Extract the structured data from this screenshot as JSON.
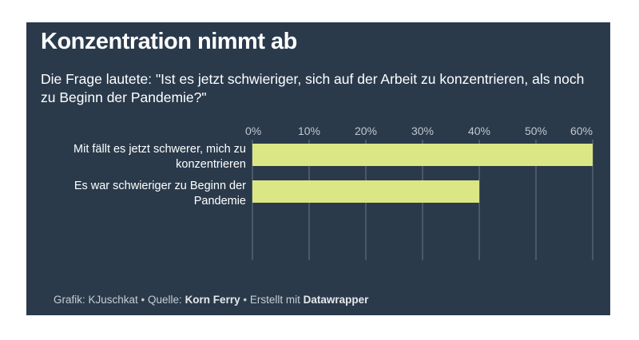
{
  "title": "Konzentration nimmt ab",
  "subtitle": "Die Frage lautete: \"Ist es jetzt schwieriger, sich auf der Arbeit zu konzentrieren, als noch zu Beginn der Pandemie?\"",
  "footer": {
    "grafik": "Grafik: KJuschkat",
    "sep": " • ",
    "quelle_label": "Quelle: ",
    "quelle": "Korn Ferry",
    "erstellt_label": "Erstellt mit ",
    "tool": "Datawrapper"
  },
  "colors": {
    "background": "#2a3a4b",
    "bar": "#dbe685",
    "grid": "#6b7784"
  },
  "chart_data": {
    "type": "bar",
    "orientation": "horizontal",
    "categories": [
      [
        "Mit fällt es jetzt schwerer, mich zu",
        "konzentrieren"
      ],
      [
        "Es war schwieriger zu Beginn der",
        "Pandemie"
      ]
    ],
    "values": [
      60,
      40
    ],
    "xlim": [
      0,
      60
    ],
    "ticks": [
      "0%",
      "10%",
      "20%",
      "30%",
      "40%",
      "50%",
      "60%"
    ],
    "tick_values": [
      0,
      10,
      20,
      30,
      40,
      50,
      60
    ],
    "grid": true,
    "axis_position": "top"
  }
}
